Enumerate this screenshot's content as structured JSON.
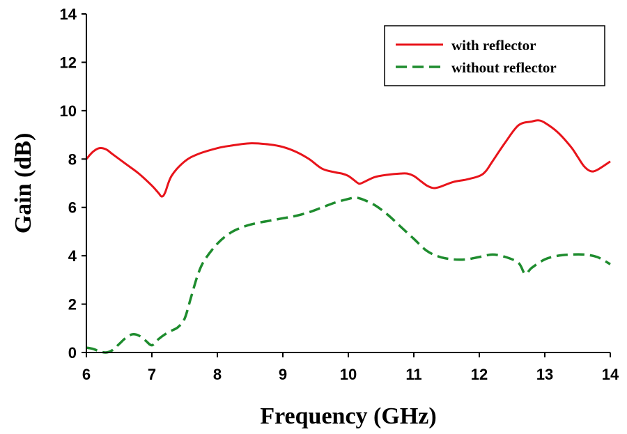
{
  "chart_data": {
    "type": "line",
    "title": "",
    "xlabel": "Frequency (GHz)",
    "ylabel": "Gain (dB)",
    "xlim": [
      6,
      14
    ],
    "ylim": [
      0,
      14
    ],
    "xticks": [
      6,
      7,
      8,
      9,
      10,
      11,
      12,
      13,
      14
    ],
    "yticks": [
      0,
      2,
      4,
      6,
      8,
      10,
      12,
      14
    ],
    "grid": false,
    "legend_position": "top-right",
    "series": [
      {
        "name": "with reflector",
        "color": "#e8141b",
        "line_style": "solid",
        "x": [
          6.0,
          6.1,
          6.2,
          6.3,
          6.4,
          6.6,
          6.8,
          7.0,
          7.1,
          7.15,
          7.2,
          7.3,
          7.5,
          7.7,
          8.0,
          8.2,
          8.5,
          8.8,
          9.0,
          9.2,
          9.4,
          9.6,
          9.8,
          9.9,
          10.0,
          10.1,
          10.15,
          10.2,
          10.4,
          10.6,
          10.8,
          10.9,
          11.0,
          11.1,
          11.2,
          11.3,
          11.4,
          11.6,
          11.8,
          12.0,
          12.1,
          12.2,
          12.4,
          12.6,
          12.8,
          12.9,
          13.0,
          13.2,
          13.4,
          13.5,
          13.6,
          13.7,
          13.8,
          14.0
        ],
        "y": [
          8.0,
          8.3,
          8.45,
          8.4,
          8.2,
          7.8,
          7.4,
          6.9,
          6.6,
          6.45,
          6.6,
          7.3,
          7.9,
          8.2,
          8.45,
          8.55,
          8.65,
          8.6,
          8.5,
          8.3,
          8.0,
          7.6,
          7.45,
          7.4,
          7.3,
          7.1,
          7.0,
          7.0,
          7.25,
          7.35,
          7.4,
          7.4,
          7.3,
          7.1,
          6.9,
          6.8,
          6.85,
          7.05,
          7.15,
          7.3,
          7.5,
          7.9,
          8.7,
          9.4,
          9.55,
          9.6,
          9.5,
          9.1,
          8.5,
          8.1,
          7.7,
          7.5,
          7.55,
          7.9
        ]
      },
      {
        "name": "without reflector",
        "color": "#1e8c2e",
        "line_style": "dashed",
        "x": [
          6.0,
          6.1,
          6.2,
          6.3,
          6.4,
          6.5,
          6.6,
          6.7,
          6.8,
          6.9,
          7.0,
          7.1,
          7.2,
          7.3,
          7.4,
          7.5,
          7.6,
          7.7,
          7.8,
          8.0,
          8.2,
          8.4,
          8.6,
          8.8,
          9.0,
          9.2,
          9.4,
          9.6,
          9.8,
          10.0,
          10.1,
          10.2,
          10.4,
          10.6,
          10.8,
          11.0,
          11.2,
          11.4,
          11.6,
          11.8,
          12.0,
          12.2,
          12.4,
          12.6,
          12.7,
          12.8,
          13.0,
          13.2,
          13.4,
          13.6,
          13.8,
          14.0
        ],
        "y": [
          0.2,
          0.15,
          0.05,
          0.0,
          0.1,
          0.35,
          0.6,
          0.75,
          0.7,
          0.5,
          0.3,
          0.55,
          0.75,
          0.9,
          1.05,
          1.4,
          2.3,
          3.2,
          3.8,
          4.5,
          4.95,
          5.2,
          5.35,
          5.45,
          5.55,
          5.65,
          5.8,
          6.0,
          6.2,
          6.35,
          6.4,
          6.35,
          6.1,
          5.7,
          5.2,
          4.7,
          4.2,
          3.95,
          3.85,
          3.85,
          3.95,
          4.05,
          3.95,
          3.7,
          3.25,
          3.5,
          3.85,
          4.0,
          4.05,
          4.05,
          3.95,
          3.65
        ]
      }
    ]
  }
}
